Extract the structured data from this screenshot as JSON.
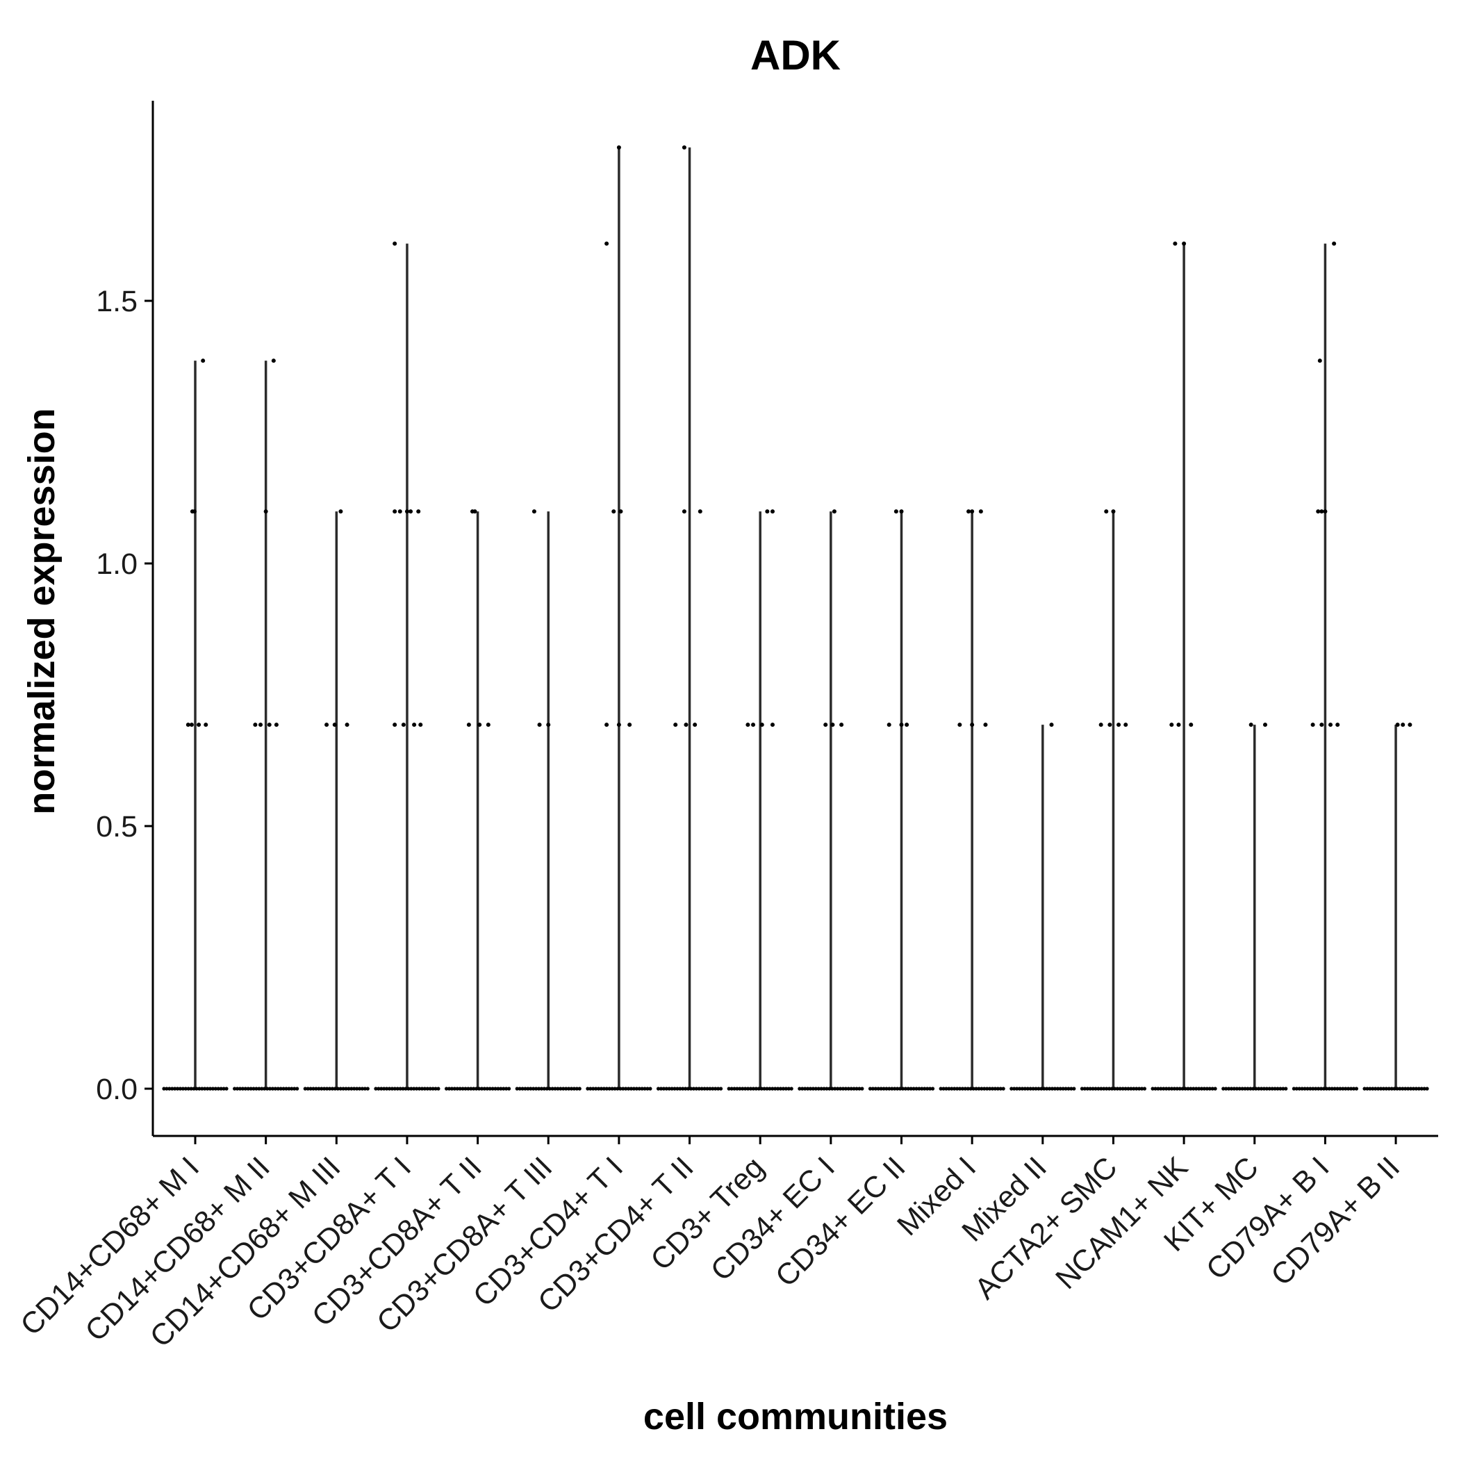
{
  "chart_data": {
    "type": "violin",
    "title": "ADK",
    "xlabel": "cell communities",
    "ylabel": "normalized expression",
    "ylim": [
      -0.09,
      1.88
    ],
    "yticks": [
      0.0,
      0.5,
      1.0,
      1.5
    ],
    "ytick_labels": [
      "0.0",
      "0.5",
      "1.0",
      "1.5"
    ],
    "grid": false,
    "legend": "none",
    "categories": [
      "CD14+CD68+ M I",
      "CD14+CD68+ M II",
      "CD14+CD68+ M III",
      "CD3+CD8A+ T I",
      "CD3+CD8A+ T II",
      "CD3+CD8A+ T III",
      "CD3+CD4+ T I",
      "CD3+CD4+ T II",
      "CD3+ Treg",
      "CD34+ EC I",
      "CD34+ EC II",
      "Mixed I",
      "Mixed II",
      "ACTA2+ SMC",
      "NCAM1+ NK",
      "KIT+ MC",
      "CD79A+ B I",
      "CD79A+ B II"
    ],
    "max_values": [
      1.386,
      1.386,
      1.099,
      1.609,
      1.099,
      1.099,
      1.792,
      1.792,
      1.099,
      1.099,
      1.099,
      1.099,
      0.693,
      1.099,
      1.609,
      0.693,
      1.609,
      0.693
    ],
    "points": [
      [
        [
          1.099,
          -0.08
        ],
        [
          1.099,
          -0.02
        ],
        [
          1.386,
          0.22
        ],
        [
          0.693,
          -0.2
        ],
        [
          0.693,
          -0.1
        ],
        [
          0.693,
          0.1
        ],
        [
          0.693,
          0.3
        ]
      ],
      [
        [
          1.099,
          0.0
        ],
        [
          1.386,
          0.22
        ],
        [
          0.693,
          -0.3
        ],
        [
          0.693,
          -0.15
        ],
        [
          0.693,
          0.1
        ],
        [
          0.693,
          0.3
        ]
      ],
      [
        [
          1.099,
          0.12
        ],
        [
          0.693,
          -0.28
        ],
        [
          0.693,
          -0.05
        ],
        [
          0.693,
          0.3
        ]
      ],
      [
        [
          1.609,
          -0.35
        ],
        [
          1.099,
          -0.35
        ],
        [
          1.099,
          -0.2
        ],
        [
          1.099,
          0.0
        ],
        [
          1.099,
          0.1
        ],
        [
          1.099,
          0.32
        ],
        [
          0.693,
          -0.35
        ],
        [
          0.693,
          -0.1
        ],
        [
          0.693,
          0.2
        ],
        [
          0.693,
          0.38
        ]
      ],
      [
        [
          1.099,
          -0.15
        ],
        [
          1.099,
          -0.08
        ],
        [
          0.693,
          -0.25
        ],
        [
          0.693,
          0.05
        ],
        [
          0.693,
          0.3
        ]
      ],
      [
        [
          1.099,
          -0.4
        ],
        [
          0.693,
          -0.25
        ],
        [
          0.693,
          0.0
        ]
      ],
      [
        [
          1.792,
          0.0
        ],
        [
          1.609,
          -0.35
        ],
        [
          1.099,
          -0.15
        ],
        [
          1.099,
          0.05
        ],
        [
          0.693,
          -0.35
        ],
        [
          0.693,
          0.0
        ],
        [
          0.693,
          0.3
        ]
      ],
      [
        [
          1.792,
          -0.15
        ],
        [
          1.099,
          -0.15
        ],
        [
          1.099,
          0.3
        ],
        [
          0.693,
          -0.4
        ],
        [
          0.693,
          -0.1
        ],
        [
          0.693,
          0.15
        ]
      ],
      [
        [
          1.099,
          0.2
        ],
        [
          1.099,
          0.35
        ],
        [
          0.693,
          -0.35
        ],
        [
          0.693,
          -0.2
        ],
        [
          0.693,
          0.05
        ],
        [
          0.693,
          0.35
        ]
      ],
      [
        [
          1.099,
          0.1
        ],
        [
          0.693,
          -0.15
        ],
        [
          0.693,
          0.05
        ],
        [
          0.693,
          0.3
        ]
      ],
      [
        [
          1.099,
          -0.15
        ],
        [
          1.099,
          0.0
        ],
        [
          0.693,
          -0.35
        ],
        [
          0.693,
          0.0
        ],
        [
          0.693,
          0.15
        ]
      ],
      [
        [
          1.099,
          -0.1
        ],
        [
          1.099,
          0.0
        ],
        [
          1.099,
          0.25
        ],
        [
          0.693,
          -0.35
        ],
        [
          0.693,
          0.0
        ],
        [
          0.693,
          0.38
        ]
      ],
      [
        [
          0.693,
          0.25
        ]
      ],
      [
        [
          1.099,
          -0.2
        ],
        [
          1.099,
          0.0
        ],
        [
          0.693,
          -0.35
        ],
        [
          0.693,
          -0.1
        ],
        [
          0.693,
          0.15
        ],
        [
          0.693,
          0.35
        ]
      ],
      [
        [
          1.609,
          -0.25
        ],
        [
          1.609,
          0.0
        ],
        [
          0.693,
          -0.35
        ],
        [
          0.693,
          -0.15
        ],
        [
          0.693,
          0.2
        ]
      ],
      [
        [
          0.693,
          -0.1
        ],
        [
          0.693,
          0.3
        ]
      ],
      [
        [
          1.609,
          0.25
        ],
        [
          1.386,
          -0.15
        ],
        [
          1.099,
          -0.2
        ],
        [
          1.099,
          -0.1
        ],
        [
          1.099,
          0.0
        ],
        [
          0.693,
          -0.35
        ],
        [
          0.693,
          -0.1
        ],
        [
          0.693,
          0.15
        ],
        [
          0.693,
          0.35
        ]
      ],
      [
        [
          0.693,
          0.05
        ],
        [
          0.693,
          0.2
        ],
        [
          0.693,
          0.4
        ]
      ]
    ]
  }
}
